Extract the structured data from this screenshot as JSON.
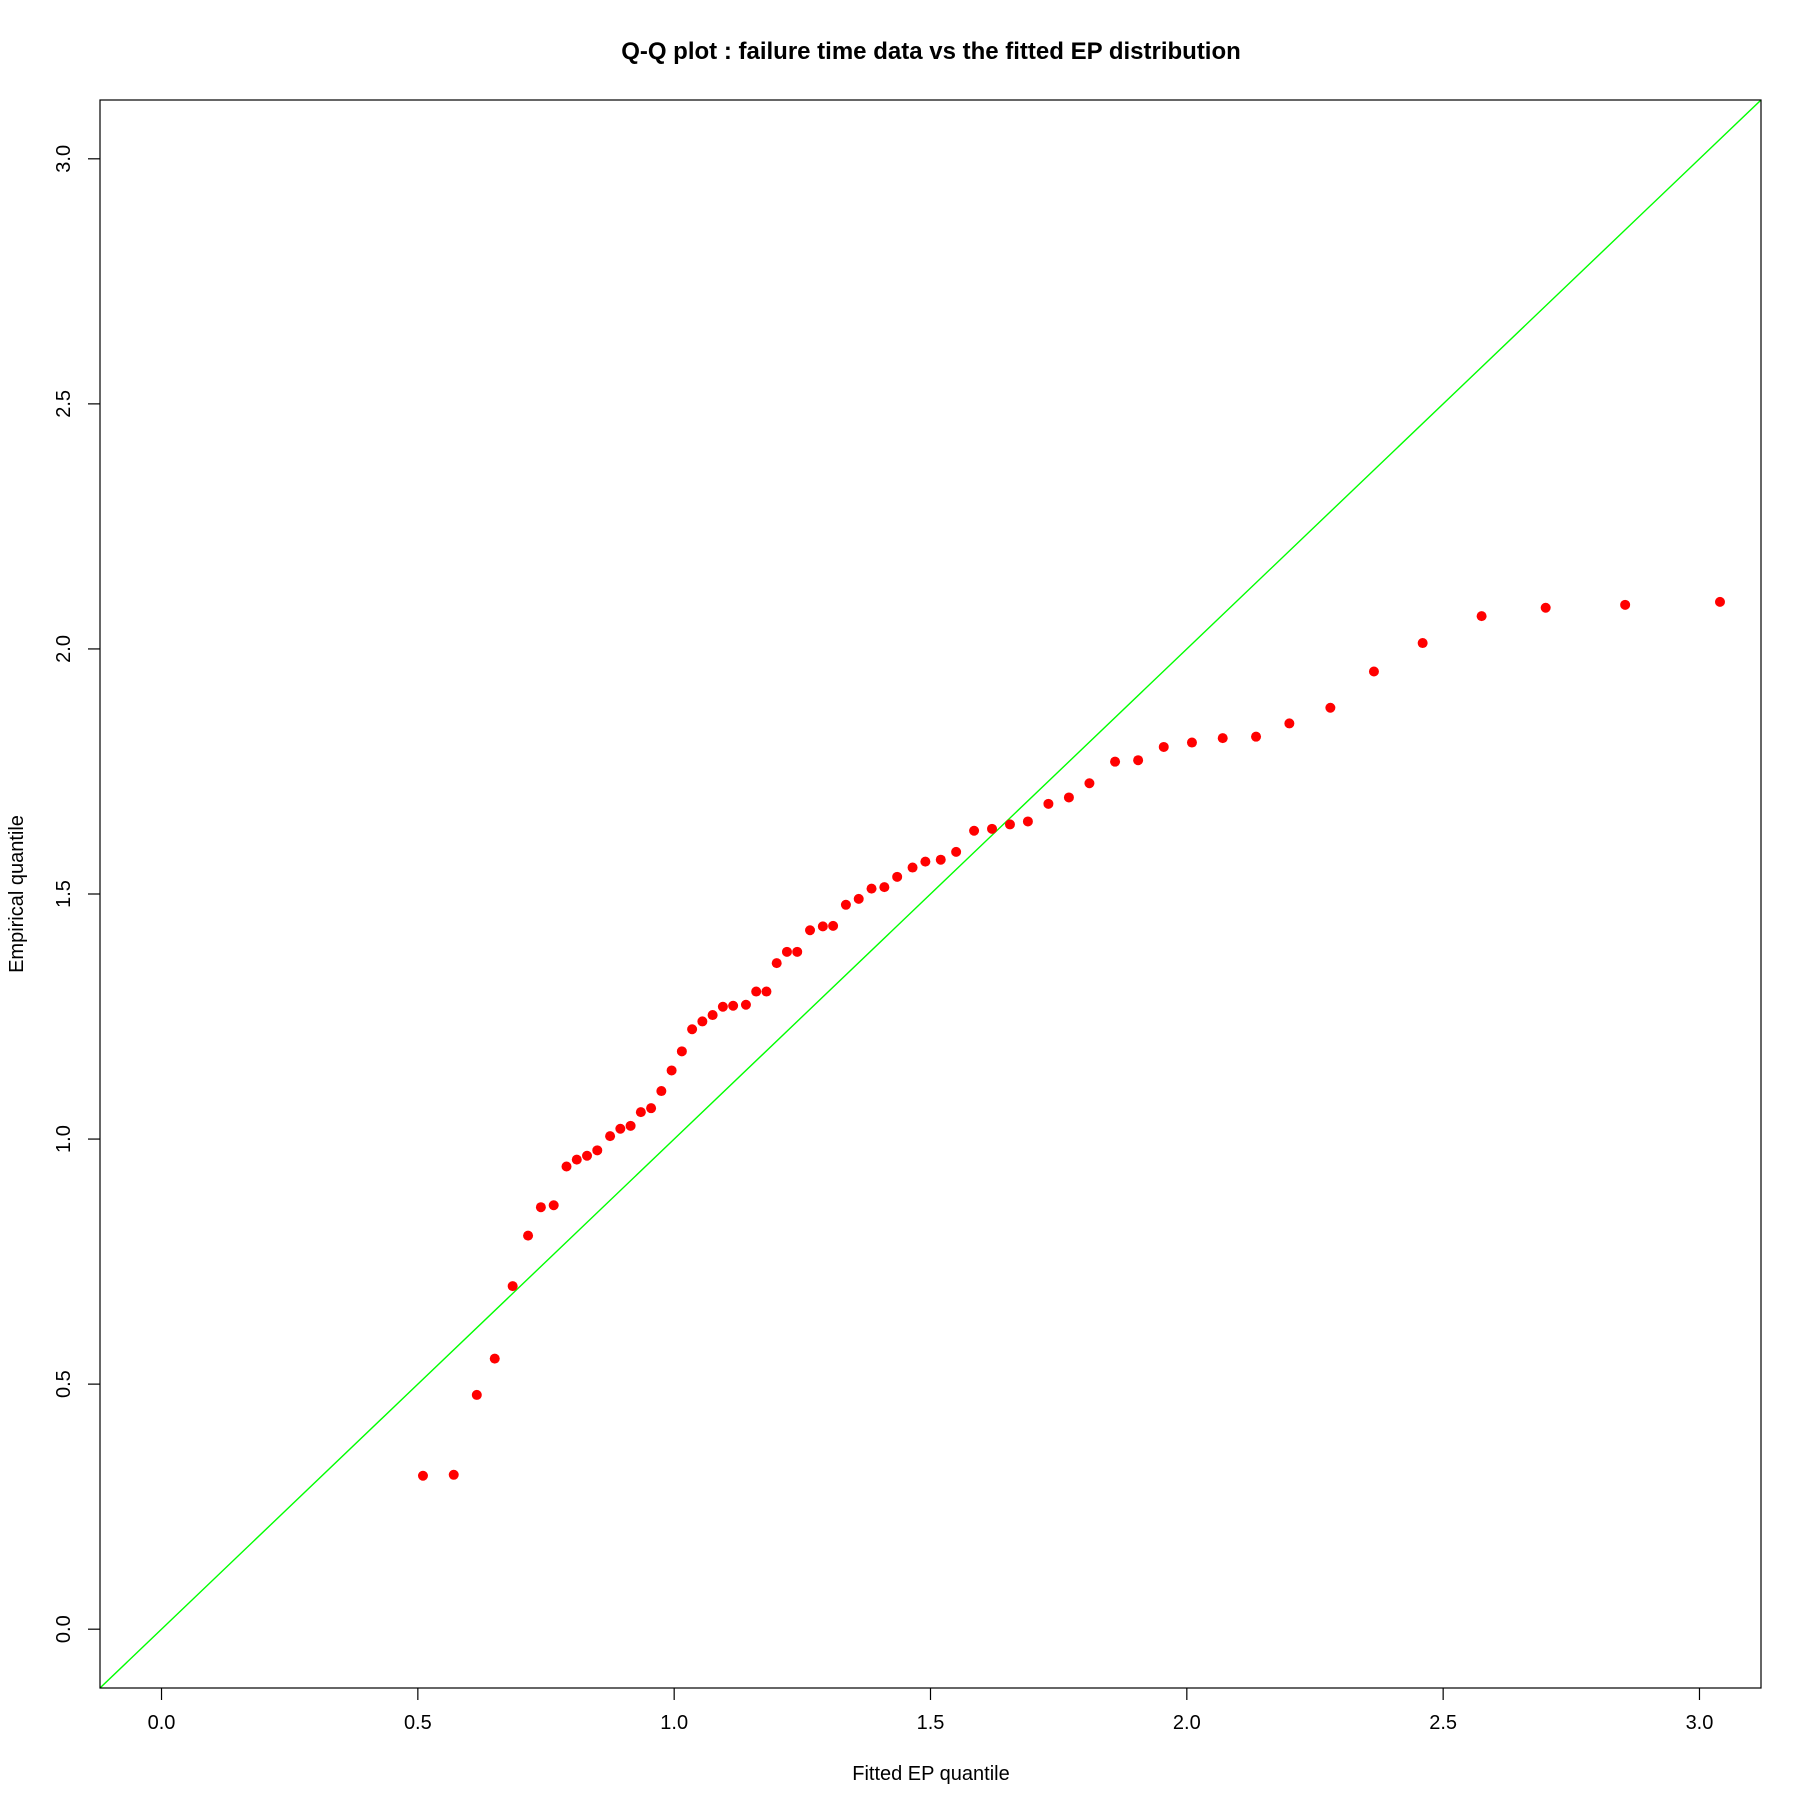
{
  "chart_data": {
    "type": "scatter",
    "title": "Q-Q plot : failure time data vs the fitted EP distribution",
    "xlabel": "Fitted EP quantile",
    "ylabel": "Empirical quantile",
    "xlim": [
      -0.12,
      3.12
    ],
    "ylim": [
      -0.12,
      3.12
    ],
    "xticks": [
      "0.0",
      "0.5",
      "1.0",
      "1.5",
      "2.0",
      "2.5",
      "3.0"
    ],
    "yticks": [
      "0.0",
      "0.5",
      "1.0",
      "1.5",
      "2.0",
      "2.5",
      "3.0"
    ],
    "grid": false,
    "legend": "none",
    "point_color": "#ff0000",
    "reference_line": {
      "slope": 1,
      "intercept": 0,
      "color": "#00ff00"
    },
    "series": [
      {
        "x": [
          0.51,
          0.57,
          0.615,
          0.65,
          0.685,
          0.715,
          0.74,
          0.765,
          0.79,
          0.81,
          0.83,
          0.85,
          0.875,
          0.895,
          0.915,
          0.935,
          0.955,
          0.975,
          0.995,
          1.015,
          1.035,
          1.055,
          1.075,
          1.095,
          1.115,
          1.14,
          1.16,
          1.18,
          1.2,
          1.22,
          1.24,
          1.265,
          1.29,
          1.31,
          1.335,
          1.36,
          1.385,
          1.41,
          1.435,
          1.465,
          1.49,
          1.52,
          1.55,
          1.585,
          1.62,
          1.655,
          1.69,
          1.73,
          1.77,
          1.81,
          1.86,
          1.905,
          1.955,
          2.01,
          2.07,
          2.135,
          2.2,
          2.28,
          2.365,
          2.46,
          2.575,
          2.7,
          2.855,
          3.04
        ],
        "y": [
          0.313,
          0.315,
          0.478,
          0.552,
          0.7,
          0.803,
          0.861,
          0.865,
          0.944,
          0.958,
          0.966,
          0.977,
          1.006,
          1.021,
          1.027,
          1.055,
          1.063,
          1.098,
          1.14,
          1.179,
          1.224,
          1.24,
          1.253,
          1.27,
          1.272,
          1.274,
          1.301,
          1.301,
          1.359,
          1.382,
          1.382,
          1.426,
          1.434,
          1.435,
          1.478,
          1.49,
          1.511,
          1.514,
          1.535,
          1.554,
          1.566,
          1.57,
          1.586,
          1.629,
          1.633,
          1.642,
          1.648,
          1.684,
          1.697,
          1.726,
          1.77,
          1.773,
          1.8,
          1.809,
          1.818,
          1.821,
          1.848,
          1.88,
          1.954,
          2.012,
          2.067,
          2.084,
          2.09,
          2.096
        ]
      }
    ]
  }
}
